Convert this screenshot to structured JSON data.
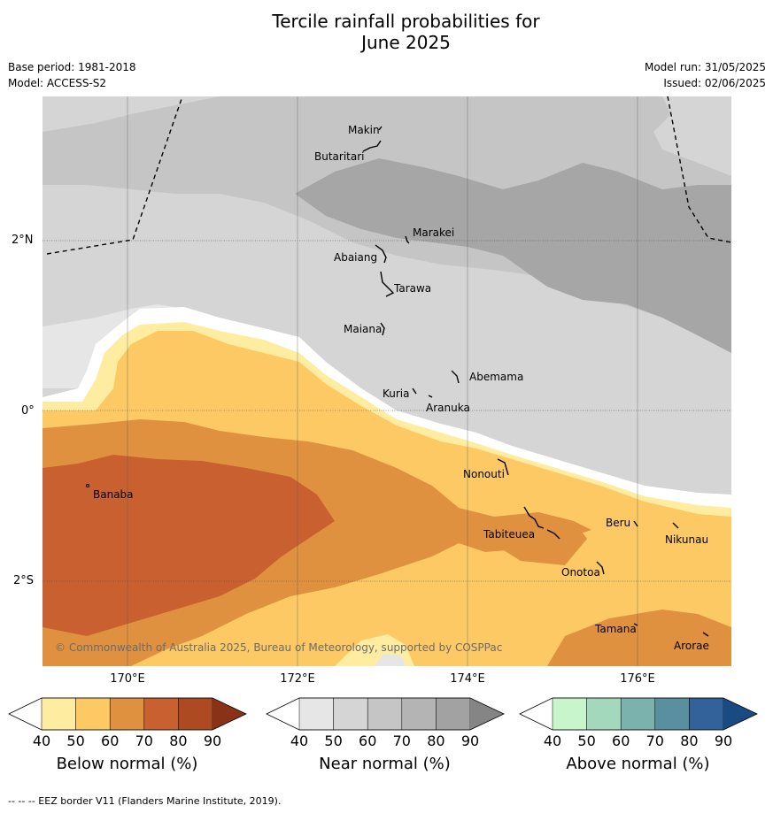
{
  "title_line1": "Tercile rainfall probabilities for",
  "title_line2": "June 2025",
  "base_period": "Base period: 1981-2018",
  "model": "Model: ACCESS-S2",
  "model_run": "Model run: 31/05/2025",
  "issued": "Issued: 02/06/2025",
  "lat_labels": [
    "2°N",
    "0°",
    "2°S"
  ],
  "lon_labels": [
    "170°E",
    "172°E",
    "174°E",
    "176°E"
  ],
  "places": [
    "Makin",
    "Butaritari",
    "Marakei",
    "Abaiang",
    "Tarawa",
    "Maiana",
    "Abemama",
    "Kuria",
    "Aranuka",
    "Nonouti",
    "Banaba",
    "Tabiteuea",
    "Beru",
    "Nikunau",
    "Onotoa",
    "Tamana",
    "Arorae"
  ],
  "copyright": "© Commonwealth of Australia 2025, Bureau of Meteorology, supported by COSPPac",
  "colorbars": [
    {
      "title": "Below normal (%)",
      "ticks": [
        "40",
        "50",
        "60",
        "70",
        "80",
        "90"
      ],
      "colors": [
        "#ffffff",
        "#feeda0",
        "#fdc964",
        "#e0913f",
        "#c8612f",
        "#ad4a22",
        "#8a3217"
      ]
    },
    {
      "title": "Near normal (%)",
      "ticks": [
        "40",
        "50",
        "60",
        "70",
        "80",
        "90"
      ],
      "colors": [
        "#ffffff",
        "#e6e6e6",
        "#d5d5d5",
        "#c5c5c5",
        "#b4b4b4",
        "#a2a2a2",
        "#858585"
      ]
    },
    {
      "title": "Above normal (%)",
      "ticks": [
        "40",
        "50",
        "60",
        "70",
        "80",
        "90"
      ],
      "colors": [
        "#ffffff",
        "#c8f5cc",
        "#a3d8bd",
        "#7cb2ae",
        "#5a8fa0",
        "#33629a",
        "#1a4a82"
      ]
    }
  ],
  "footnote": "--  --  -- EEZ border V11 (Flanders Marine Institute, 2019)."
}
